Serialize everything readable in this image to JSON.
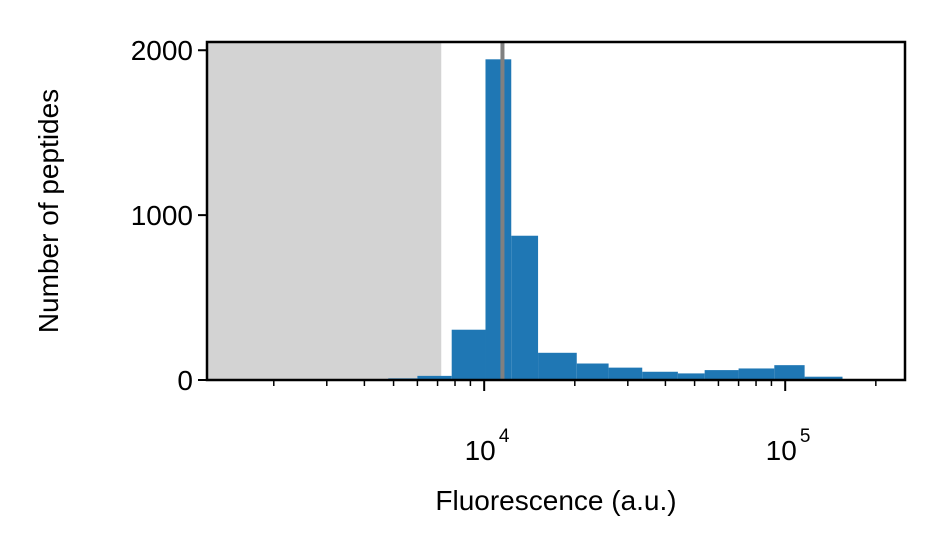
{
  "chart_data": {
    "type": "bar",
    "title": "",
    "xlabel": "Fluorescence (a.u.)",
    "ylabel": "Number of peptides",
    "x_scale": "log",
    "xlim": [
      1200,
      250000
    ],
    "ylim": [
      0,
      2050
    ],
    "grid": false,
    "colors": {
      "bars": "#1f77b4",
      "shaded_region": "#d3d3d3",
      "threshold_line": "#808080"
    },
    "shaded_region": {
      "x_start": 1200,
      "x_end": 7200
    },
    "threshold_line": {
      "x": 11500
    },
    "y_ticks": [
      {
        "value": 0,
        "label": "0"
      },
      {
        "value": 1000,
        "label": "1000"
      },
      {
        "value": 2000,
        "label": "2000"
      }
    ],
    "x_major_ticks": [
      {
        "value": 10000,
        "base": "10",
        "exp": "4"
      },
      {
        "value": 100000,
        "base": "10",
        "exp": "5"
      }
    ],
    "bins": [
      {
        "x0": 4800,
        "x1": 6000,
        "count": 10
      },
      {
        "x0": 6000,
        "x1": 7800,
        "count": 25
      },
      {
        "x0": 7800,
        "x1": 10100,
        "count": 305
      },
      {
        "x0": 10100,
        "x1": 12300,
        "count": 1945
      },
      {
        "x0": 12300,
        "x1": 15100,
        "count": 875
      },
      {
        "x0": 15100,
        "x1": 20300,
        "count": 165
      },
      {
        "x0": 20300,
        "x1": 25900,
        "count": 100
      },
      {
        "x0": 25900,
        "x1": 33500,
        "count": 75
      },
      {
        "x0": 33500,
        "x1": 44000,
        "count": 50
      },
      {
        "x0": 44000,
        "x1": 54000,
        "count": 40
      },
      {
        "x0": 54000,
        "x1": 70000,
        "count": 60
      },
      {
        "x0": 70000,
        "x1": 92000,
        "count": 70
      },
      {
        "x0": 92000,
        "x1": 116000,
        "count": 90
      },
      {
        "x0": 116000,
        "x1": 155000,
        "count": 20
      },
      {
        "x0": 155000,
        "x1": 210000,
        "count": 5
      }
    ]
  }
}
